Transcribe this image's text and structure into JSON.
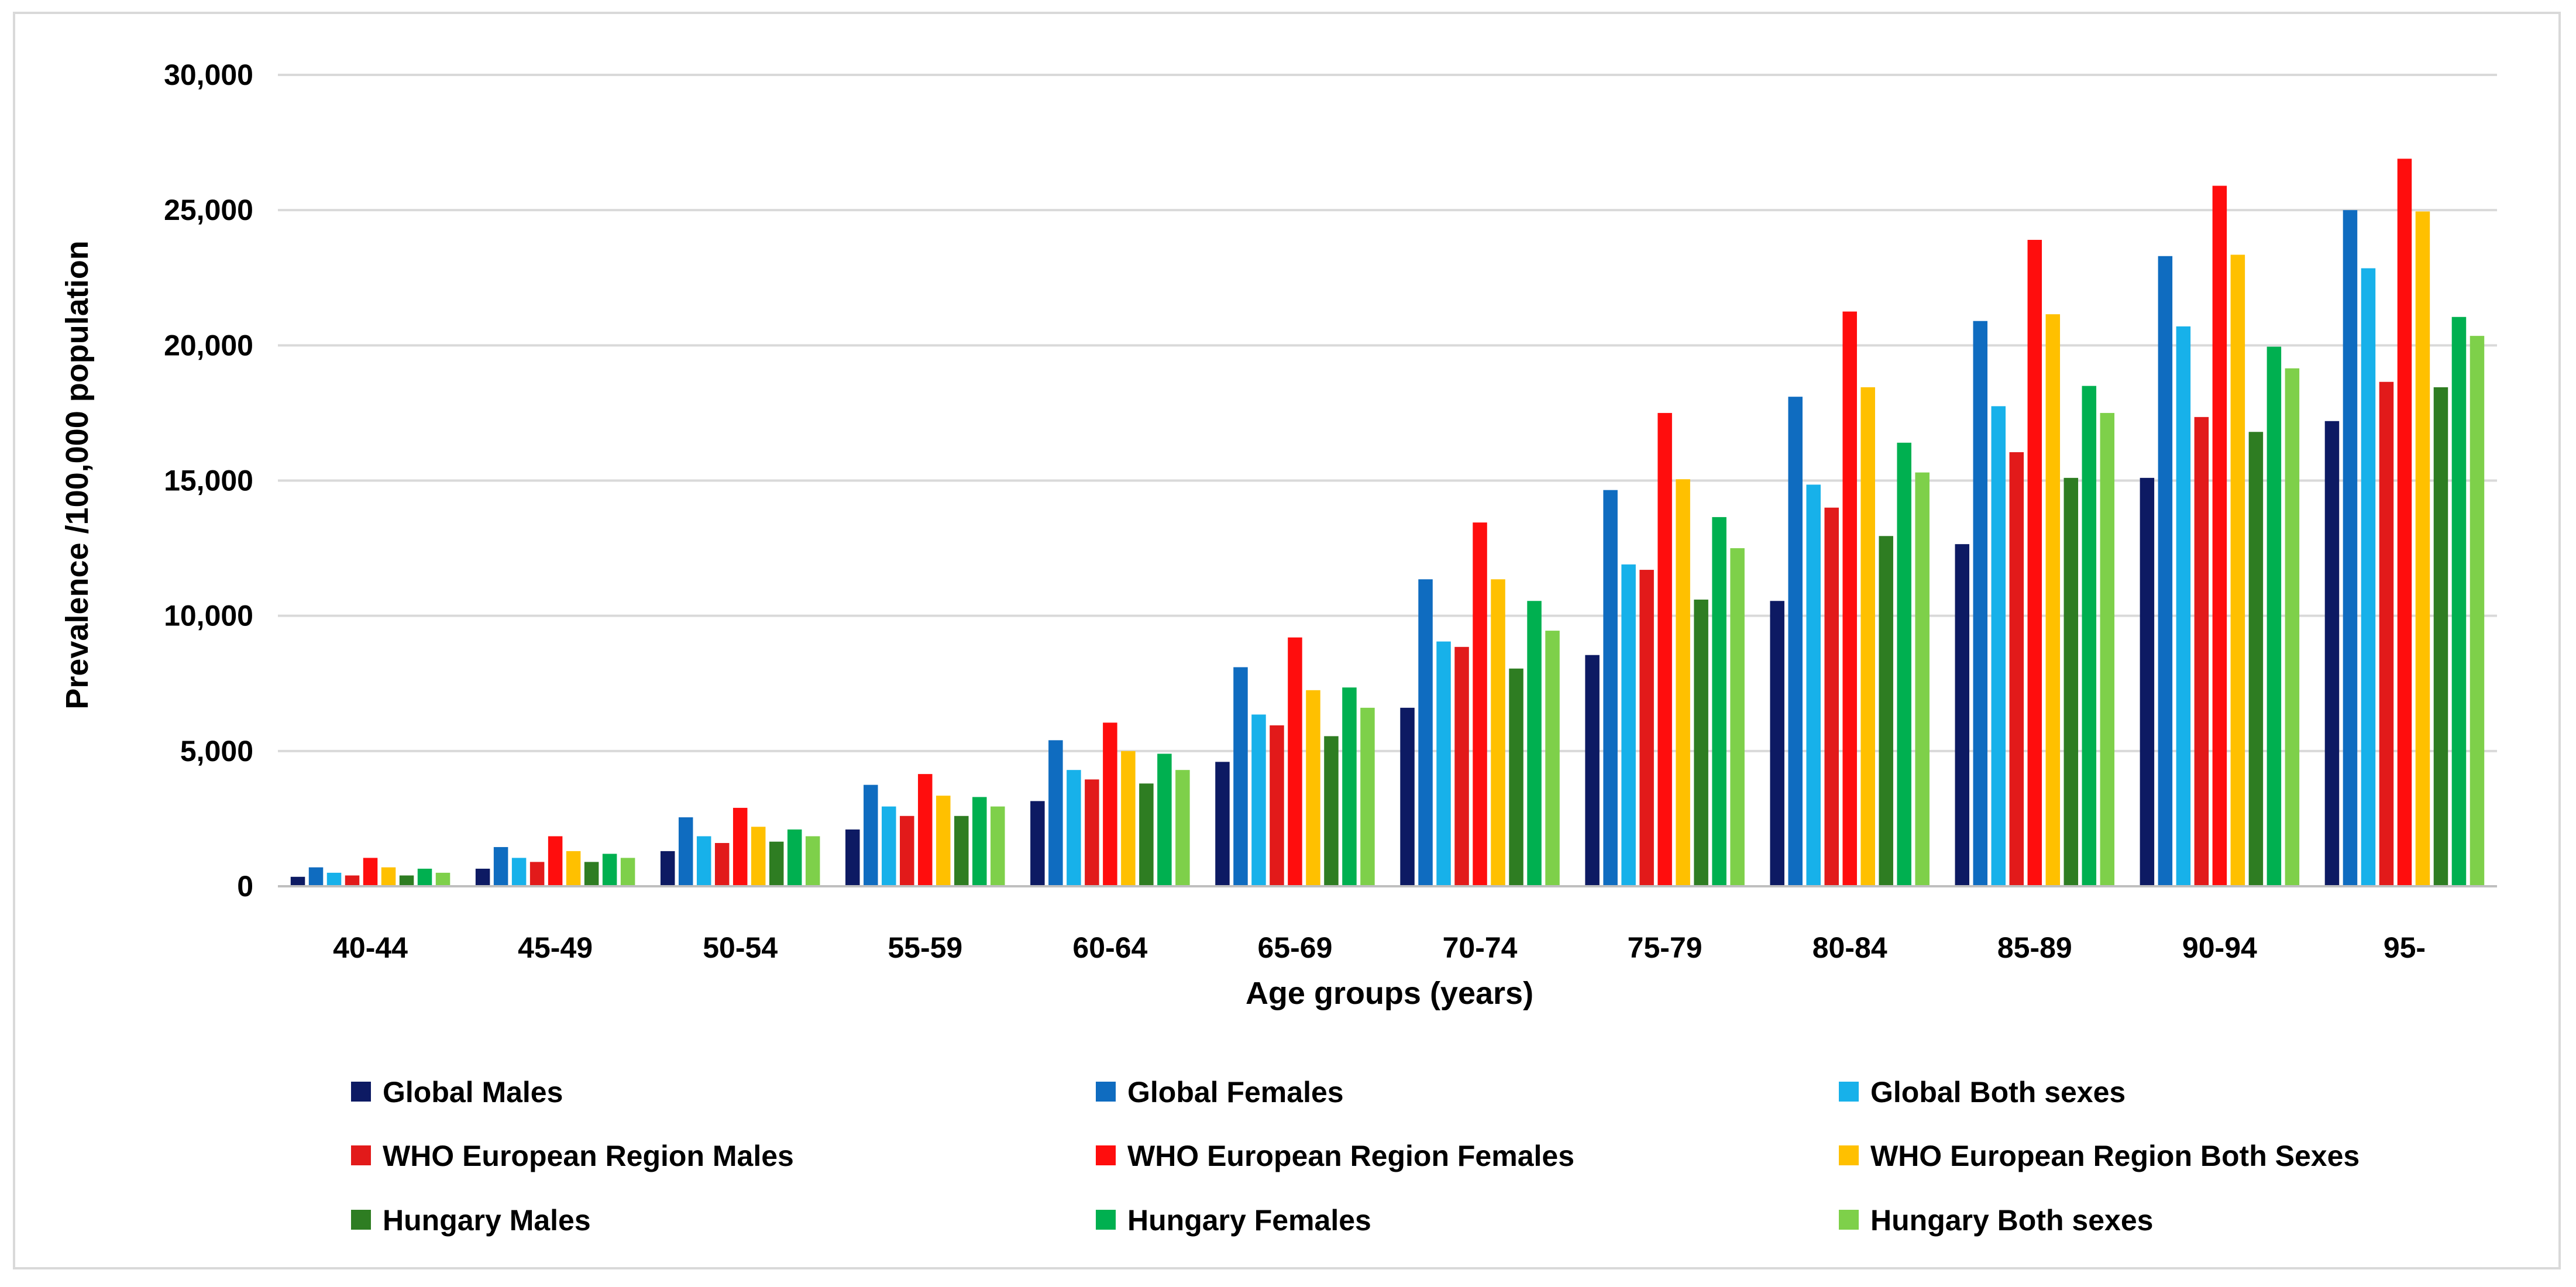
{
  "chart_data": {
    "type": "bar",
    "title": "",
    "xlabel": "Age groups (years)",
    "ylabel": "Prevalence /100,000 population",
    "ylim": [
      0,
      30000
    ],
    "yticks": [
      "0",
      "5,000",
      "10,000",
      "15,000",
      "20,000",
      "25,000",
      "30,000"
    ],
    "yticks_values": [
      0,
      5000,
      10000,
      15000,
      20000,
      25000,
      30000
    ],
    "grid": true,
    "legend_position": "bottom",
    "categories": [
      "40-44",
      "45-49",
      "50-54",
      "55-59",
      "60-64",
      "65-69",
      "70-74",
      "75-79",
      "80-84",
      "85-89",
      "90-94",
      "95-"
    ],
    "series": [
      {
        "name": "Global Males",
        "color": "#0d1a63",
        "values": [
          350,
          650,
          1300,
          2100,
          3150,
          4600,
          6600,
          8550,
          10550,
          12650,
          15100,
          17200
        ]
      },
      {
        "name": "Global Females",
        "color": "#0f6cc0",
        "values": [
          700,
          1450,
          2550,
          3750,
          5400,
          8100,
          11350,
          14650,
          18100,
          20900,
          23300,
          25000
        ]
      },
      {
        "name": "Global Both sexes",
        "color": "#17b1ea",
        "values": [
          500,
          1050,
          1850,
          2950,
          4300,
          6350,
          9050,
          11900,
          14850,
          17750,
          20700,
          22850
        ]
      },
      {
        "name": "WHO European Region Males",
        "color": "#e21a1a",
        "values": [
          400,
          900,
          1600,
          2600,
          3950,
          5950,
          8850,
          11700,
          14000,
          16050,
          17350,
          18650
        ]
      },
      {
        "name": "WHO European Region Females",
        "color": "#ff0d0d",
        "values": [
          1050,
          1850,
          2900,
          4150,
          6050,
          9200,
          13450,
          17500,
          21250,
          23900,
          25900,
          26900
        ]
      },
      {
        "name": "WHO European Region Both Sexes",
        "color": "#ffc000",
        "values": [
          700,
          1300,
          2200,
          3350,
          5000,
          7250,
          11350,
          15050,
          18450,
          21150,
          23350,
          24950
        ]
      },
      {
        "name": "Hungary Males",
        "color": "#2e7d22",
        "values": [
          400,
          900,
          1650,
          2600,
          3800,
          5550,
          8050,
          10600,
          12950,
          15100,
          16800,
          18450
        ]
      },
      {
        "name": "Hungary Females",
        "color": "#00b050",
        "values": [
          650,
          1200,
          2100,
          3300,
          4900,
          7350,
          10550,
          13650,
          16400,
          18500,
          19950,
          21050
        ]
      },
      {
        "name": "Hungary Both sexes",
        "color": "#7ed04a",
        "values": [
          500,
          1050,
          1850,
          2950,
          4300,
          6600,
          9450,
          12500,
          15300,
          17500,
          19150,
          20350
        ]
      }
    ]
  }
}
